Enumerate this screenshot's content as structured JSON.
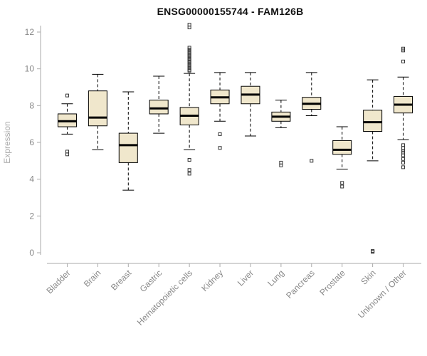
{
  "chart_data": {
    "type": "boxplot",
    "title": "ENSG00000155744 - FAM126B",
    "ylabel": "Expression",
    "ylim": [
      0,
      12
    ],
    "yticks": [
      0,
      2,
      4,
      6,
      8,
      10,
      12
    ],
    "grid": false,
    "legend": "none",
    "categories": [
      "Bladder",
      "Brain",
      "Breast",
      "Gastric",
      "Hematopoietic cells",
      "Kidney",
      "Liver",
      "Lung",
      "Pancreas",
      "Prostate",
      "Skin",
      "Unknown / Other"
    ],
    "series": [
      {
        "category": "Bladder",
        "low": 6.45,
        "q1": 6.85,
        "median": 7.15,
        "q3": 7.55,
        "high": 8.1,
        "outliers": [
          8.55,
          5.5,
          5.35
        ]
      },
      {
        "category": "Brain",
        "low": 5.6,
        "q1": 6.9,
        "median": 7.35,
        "q3": 8.8,
        "high": 9.7,
        "outliers": []
      },
      {
        "category": "Breast",
        "low": 3.4,
        "q1": 4.9,
        "median": 5.85,
        "q3": 6.5,
        "high": 8.75,
        "outliers": []
      },
      {
        "category": "Gastric",
        "low": 6.5,
        "q1": 7.55,
        "median": 7.85,
        "q3": 8.3,
        "high": 9.6,
        "outliers": []
      },
      {
        "category": "Hematopoietic cells",
        "low": 5.6,
        "q1": 6.95,
        "median": 7.45,
        "q3": 7.9,
        "high": 9.75,
        "outliers": [
          12.4,
          12.25,
          11.15,
          11.05,
          10.95,
          10.85,
          10.75,
          10.65,
          10.55,
          10.45,
          10.35,
          10.25,
          10.15,
          10.05,
          9.95,
          9.9,
          5.05,
          4.5,
          4.3
        ]
      },
      {
        "category": "Kidney",
        "low": 7.15,
        "q1": 8.1,
        "median": 8.45,
        "q3": 8.85,
        "high": 9.8,
        "outliers": [
          6.45,
          5.7
        ]
      },
      {
        "category": "Liver",
        "low": 6.35,
        "q1": 8.1,
        "median": 8.6,
        "q3": 9.05,
        "high": 9.8,
        "outliers": []
      },
      {
        "category": "Lung",
        "low": 6.8,
        "q1": 7.15,
        "median": 7.4,
        "q3": 7.65,
        "high": 8.3,
        "outliers": [
          4.9,
          4.75
        ]
      },
      {
        "category": "Pancreas",
        "low": 7.45,
        "q1": 7.8,
        "median": 8.1,
        "q3": 8.45,
        "high": 9.8,
        "outliers": [
          5.0
        ]
      },
      {
        "category": "Prostate",
        "low": 4.55,
        "q1": 5.35,
        "median": 5.6,
        "q3": 6.1,
        "high": 6.85,
        "outliers": [
          3.8,
          3.6
        ]
      },
      {
        "category": "Skin",
        "low": 5.0,
        "q1": 6.6,
        "median": 7.1,
        "q3": 7.75,
        "high": 9.4,
        "outliers": [
          0.1,
          0.05
        ]
      },
      {
        "category": "Unknown / Other",
        "low": 6.15,
        "q1": 7.6,
        "median": 8.05,
        "q3": 8.5,
        "high": 9.55,
        "outliers": [
          11.1,
          11.0,
          10.4,
          5.85,
          5.7,
          5.55,
          5.45,
          5.3,
          5.1,
          4.9,
          4.65
        ]
      }
    ],
    "colors": {
      "box_fill": "#f0e7cc",
      "box_stroke": "#000000",
      "median": "#000000",
      "axis": "#aaaaaa",
      "tick_text": "#888888",
      "outlier_stroke": "#333333",
      "title": "#111111"
    }
  }
}
